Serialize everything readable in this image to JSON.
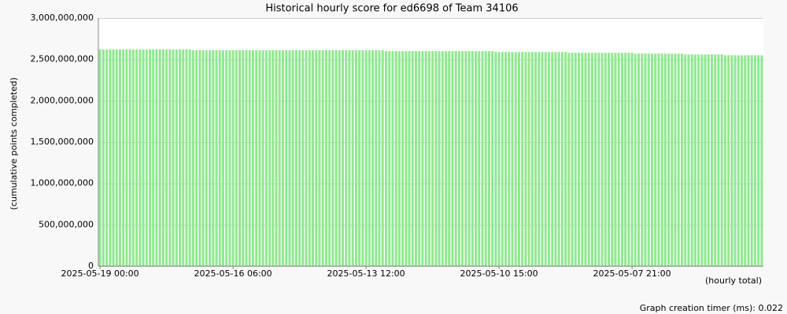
{
  "chart_data": {
    "type": "bar",
    "title": "Historical hourly score for ed6698 of Team 34106",
    "y_label": "(cumulative points completed)",
    "x_label": "(hourly total)",
    "footer": "Graph creation timer (ms): 0.022",
    "color": "#90e890",
    "grid": true,
    "ylim": [
      0,
      3000000000
    ],
    "yticks": [
      0,
      {
        "value": 500000000,
        "label": "500,000,000"
      },
      {
        "value": 1000000000,
        "label": "1,000,000,000"
      },
      {
        "value": 1500000000,
        "label": "1,500,000,000"
      },
      {
        "value": 2000000000,
        "label": "2,000,000,000"
      },
      {
        "value": 2500000000,
        "label": "2,500,000,000"
      },
      {
        "value": 3000000000,
        "label": "3,000,000,000"
      }
    ],
    "categories": [
      "2025-05-19 00:00",
      null,
      null,
      null,
      null,
      null,
      null,
      null,
      null,
      null,
      null,
      null,
      null,
      null,
      null,
      null,
      null,
      null,
      null,
      null,
      null,
      null,
      null,
      null,
      null,
      null,
      null,
      null,
      null,
      null,
      null,
      null,
      null,
      null,
      null,
      null,
      null,
      null,
      null,
      null,
      "2025-05-16 06:00",
      null,
      null,
      null,
      null,
      null,
      null,
      null,
      null,
      null,
      null,
      null,
      null,
      null,
      null,
      null,
      null,
      null,
      null,
      null,
      null,
      null,
      null,
      null,
      null,
      null,
      null,
      null,
      null,
      null,
      null,
      null,
      null,
      null,
      null,
      null,
      null,
      null,
      null,
      null,
      "2025-05-13 12:00",
      null,
      null,
      null,
      null,
      null,
      null,
      null,
      null,
      null,
      null,
      null,
      null,
      null,
      null,
      null,
      null,
      null,
      null,
      null,
      null,
      null,
      null,
      null,
      null,
      null,
      null,
      null,
      null,
      null,
      null,
      null,
      null,
      null,
      null,
      null,
      null,
      null,
      null,
      null,
      "2025-05-10 15:00",
      null,
      null,
      null,
      null,
      null,
      null,
      null,
      null,
      null,
      null,
      null,
      null,
      null,
      null,
      null,
      null,
      null,
      null,
      null,
      null,
      null,
      null,
      null,
      null,
      null,
      null,
      null,
      null,
      null,
      null,
      null,
      null,
      null,
      null,
      null,
      null,
      null,
      null,
      null,
      "2025-05-07 21:00",
      null,
      null,
      null,
      null,
      null,
      null,
      null,
      null,
      null,
      null,
      null,
      null,
      null,
      null,
      null,
      null,
      null,
      null,
      null,
      null,
      null,
      null,
      null,
      null,
      null,
      null,
      null,
      null,
      null,
      null,
      null,
      null,
      null,
      null,
      null,
      null,
      null,
      null,
      null
    ],
    "values": [
      2620000000,
      2620000000,
      2620000000,
      2620000000,
      2620000000,
      2620000000,
      2620000000,
      2620000000,
      2620000000,
      2620000000,
      2620000000,
      2620000000,
      2620000000,
      2620000000,
      2620000000,
      2620000000,
      2620000000,
      2620000000,
      2620000000,
      2620000000,
      2620000000,
      2620000000,
      2620000000,
      2620000000,
      2620000000,
      2620000000,
      2620000000,
      2620000000,
      2610000000,
      2610000000,
      2610000000,
      2610000000,
      2610000000,
      2610000000,
      2610000000,
      2610000000,
      2610000000,
      2610000000,
      2610000000,
      2610000000,
      2610000000,
      2610000000,
      2610000000,
      2610000000,
      2610000000,
      2610000000,
      2610000000,
      2610000000,
      2610000000,
      2610000000,
      2610000000,
      2610000000,
      2610000000,
      2610000000,
      2610000000,
      2610000000,
      2610000000,
      2610000000,
      2610000000,
      2610000000,
      2610000000,
      2610000000,
      2610000000,
      2610000000,
      2610000000,
      2610000000,
      2610000000,
      2610000000,
      2610000000,
      2610000000,
      2610000000,
      2610000000,
      2610000000,
      2610000000,
      2610000000,
      2610000000,
      2610000000,
      2610000000,
      2610000000,
      2610000000,
      2610000000,
      2610000000,
      2610000000,
      2610000000,
      2610000000,
      2610000000,
      2600000000,
      2600000000,
      2600000000,
      2600000000,
      2600000000,
      2600000000,
      2600000000,
      2600000000,
      2600000000,
      2600000000,
      2600000000,
      2600000000,
      2600000000,
      2600000000,
      2600000000,
      2600000000,
      2600000000,
      2600000000,
      2600000000,
      2600000000,
      2600000000,
      2600000000,
      2600000000,
      2600000000,
      2600000000,
      2600000000,
      2600000000,
      2600000000,
      2600000000,
      2600000000,
      2600000000,
      2600000000,
      2600000000,
      2590000000,
      2590000000,
      2590000000,
      2590000000,
      2590000000,
      2590000000,
      2590000000,
      2590000000,
      2590000000,
      2590000000,
      2590000000,
      2590000000,
      2590000000,
      2590000000,
      2590000000,
      2590000000,
      2590000000,
      2590000000,
      2590000000,
      2590000000,
      2590000000,
      2590000000,
      2580000000,
      2580000000,
      2580000000,
      2580000000,
      2580000000,
      2580000000,
      2580000000,
      2580000000,
      2580000000,
      2580000000,
      2580000000,
      2580000000,
      2580000000,
      2580000000,
      2580000000,
      2580000000,
      2580000000,
      2580000000,
      2580000000,
      2580000000,
      2570000000,
      2570000000,
      2570000000,
      2570000000,
      2570000000,
      2570000000,
      2570000000,
      2570000000,
      2570000000,
      2570000000,
      2570000000,
      2570000000,
      2570000000,
      2570000000,
      2570000000,
      2560000000,
      2560000000,
      2560000000,
      2560000000,
      2560000000,
      2560000000,
      2560000000,
      2560000000,
      2560000000,
      2560000000,
      2560000000,
      2560000000,
      2550000000,
      2550000000,
      2550000000,
      2550000000,
      2550000000,
      2550000000,
      2550000000,
      2550000000,
      2550000000,
      2550000000,
      2550000000,
      2550000000
    ]
  }
}
